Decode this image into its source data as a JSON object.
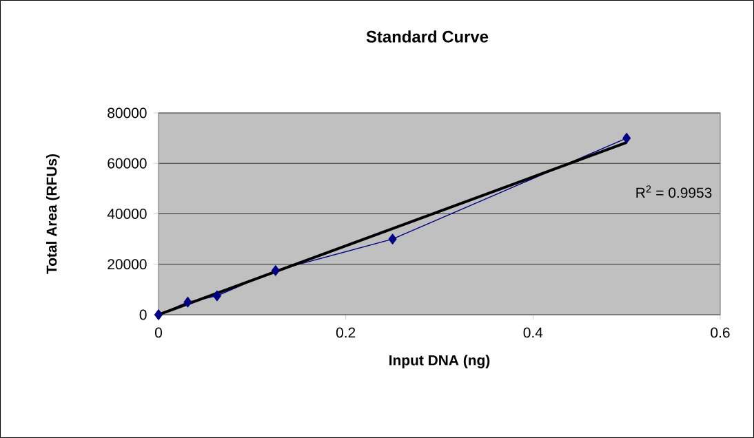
{
  "chart_data": {
    "type": "line",
    "title": "Standard Curve",
    "xlabel": "Input DNA (ng)",
    "ylabel": "Total Area (RFUs)",
    "annotations": [
      "R$^{2}$ = 0.9953"
    ],
    "xlim": [
      0,
      0.6
    ],
    "xticks": [
      0,
      0.2,
      0.4,
      0.6
    ],
    "ylim": [
      0,
      80000
    ],
    "yticks": [
      0,
      20000,
      40000,
      60000,
      80000
    ],
    "grid": "y",
    "series": [
      {
        "color": "#000080",
        "marker": "diamond",
        "x": [
          0,
          0.03125,
          0.0625,
          0.125,
          0.25,
          0.5
        ],
        "values": [
          0,
          5000,
          7500,
          17500,
          30000,
          70000
        ]
      },
      {
        "color": "#000000",
        "marker": "none",
        "x": [
          0,
          0.5
        ],
        "values": [
          0,
          68300
        ]
      }
    ]
  }
}
